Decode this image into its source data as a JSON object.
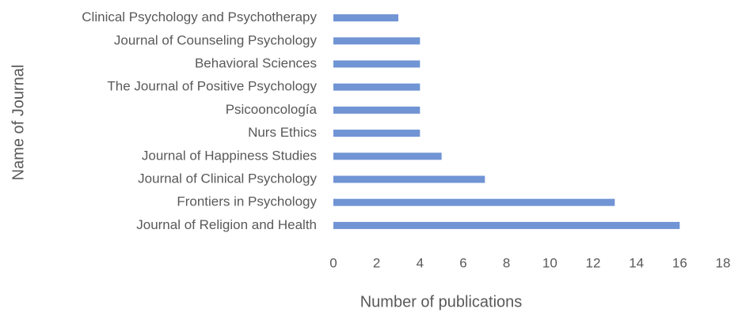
{
  "chart_data": {
    "type": "barh",
    "x_label": "Number of publications",
    "y_label": "Name of Journal",
    "categories": [
      "Clinical Psychology and Psychotherapy",
      "Journal of Counseling Psychology",
      "Behavioral Sciences",
      "The Journal of Positive Psychology",
      "Psicooncología",
      "Nurs Ethics",
      "Journal of Happiness Studies",
      "Journal of Clinical Psychology",
      "Frontiers in Psychology",
      "Journal of Religion and Health"
    ],
    "values": [
      3,
      4,
      4,
      4,
      4,
      4,
      5,
      7,
      13,
      16
    ],
    "color": "#7094d4",
    "xlim": [
      0,
      18
    ],
    "xticks": [
      0,
      2,
      4,
      6,
      8,
      10,
      12,
      14,
      16,
      18
    ],
    "grid": false
  }
}
